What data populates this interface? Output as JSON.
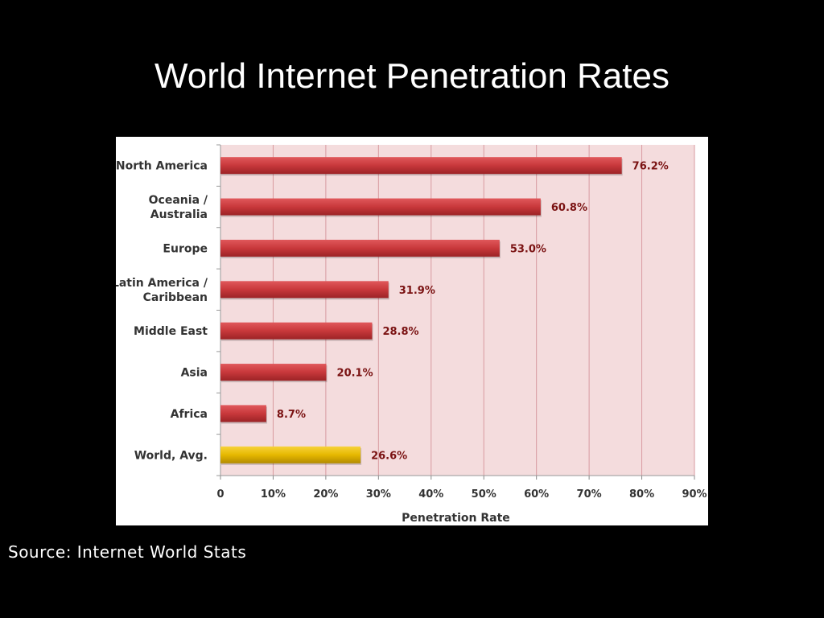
{
  "slide": {
    "title": "World Internet Penetration Rates",
    "source": "Source: Internet World Stats"
  },
  "colors": {
    "background": "#000000",
    "plot_area": "#f4dcdd",
    "bar": "#c8383b",
    "highlight_bar": "#e6b800",
    "gridline": "#d89aa0",
    "value_label": "#7a1212"
  },
  "chart_data": {
    "type": "bar",
    "orientation": "horizontal",
    "categories": [
      [
        "North America"
      ],
      [
        "Oceania  /",
        "Australia"
      ],
      [
        "Europe"
      ],
      [
        "Latin America /",
        "Caribbean"
      ],
      [
        "Middle East"
      ],
      [
        "Asia"
      ],
      [
        "Africa"
      ],
      [
        "World, Avg."
      ]
    ],
    "values": [
      76.2,
      60.8,
      53.0,
      31.9,
      28.8,
      20.1,
      8.7,
      26.6
    ],
    "value_labels": [
      "76.2%",
      "60.8%",
      "53.0%",
      "31.9%",
      "28.8%",
      "20.1%",
      "8.7%",
      "26.6%"
    ],
    "highlight_index": 7,
    "xlabel": "Penetration Rate",
    "xlim": [
      0,
      90
    ],
    "xticks": [
      "0",
      "10%",
      "20%",
      "30%",
      "40%",
      "50%",
      "60%",
      "70%",
      "80%",
      "90%"
    ],
    "grid": true,
    "legend": false
  }
}
